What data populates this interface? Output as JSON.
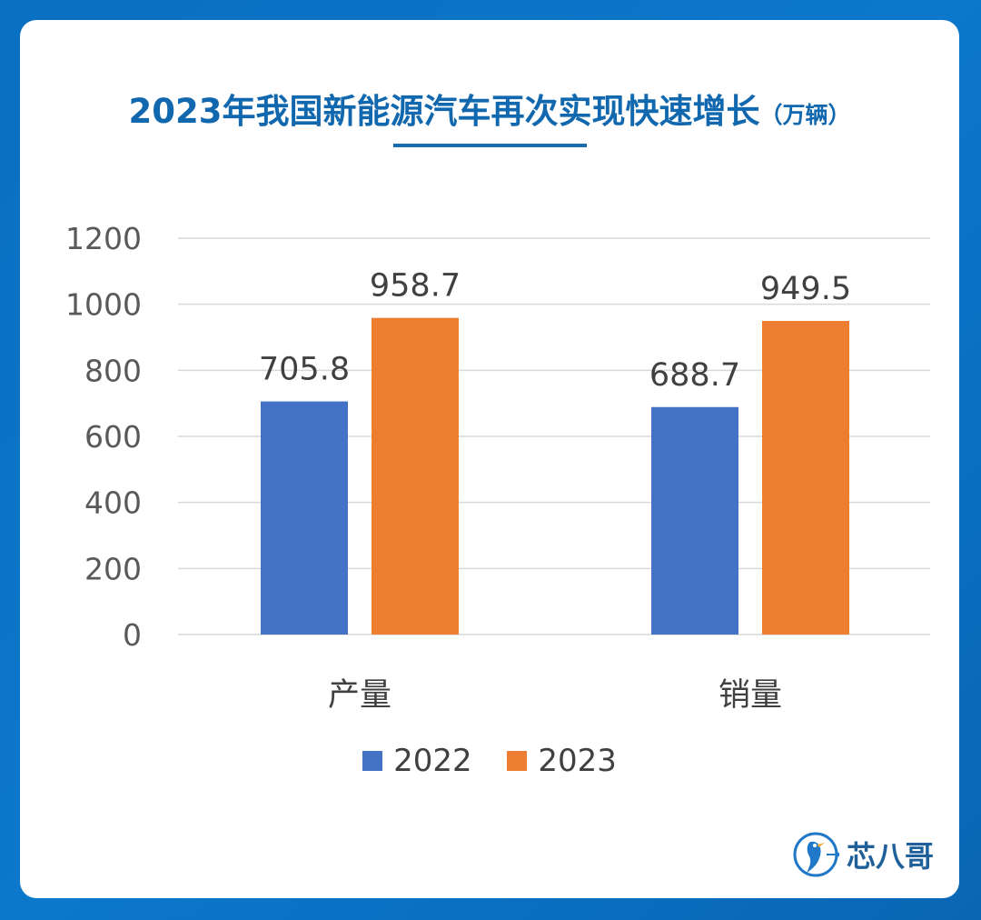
{
  "title": "2023年我国新能源汽车再次实现快速增长",
  "title_unit": "（万辆）",
  "brand": {
    "name": "芯八哥",
    "icon": "bird-logo-icon"
  },
  "colors": {
    "series_2022": "#4472c4",
    "series_2023": "#ed7d31",
    "title": "#1168ae",
    "grid": "#d9d9d9"
  },
  "chart_data": {
    "type": "bar",
    "categories": [
      "产量",
      "销量"
    ],
    "series": [
      {
        "name": "2022",
        "values": [
          705.8,
          688.7
        ]
      },
      {
        "name": "2023",
        "values": [
          958.7,
          949.5
        ]
      }
    ],
    "data_labels": [
      [
        "705.8",
        "688.7"
      ],
      [
        "958.7",
        "949.5"
      ]
    ],
    "yticks": [
      "0",
      "200",
      "400",
      "600",
      "800",
      "1000",
      "1200"
    ],
    "ylim": [
      0,
      1200
    ],
    "grid": true,
    "legend": "bottom"
  }
}
